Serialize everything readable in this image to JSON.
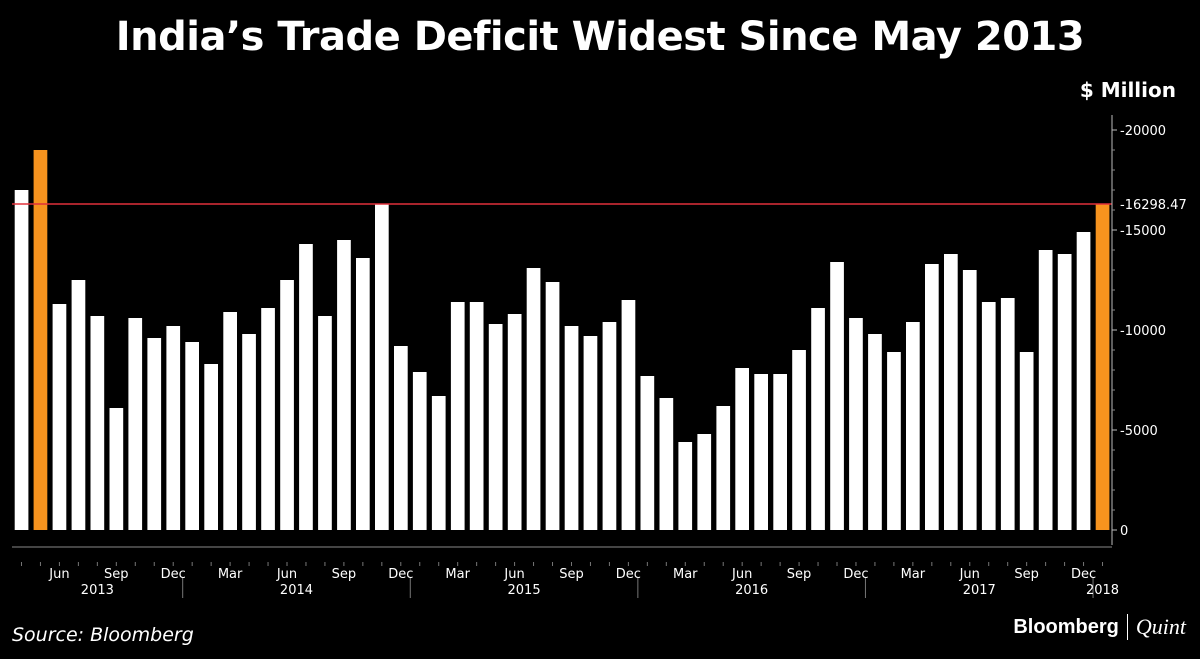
{
  "header": {
    "title": "India’s Trade Deficit Widest Since May 2013",
    "unit": "$ Million"
  },
  "footer": {
    "source": "Source: Bloomberg",
    "brand1": "Bloomberg",
    "brand2": "Quint"
  },
  "colors": {
    "bar": "#ffffff",
    "highlight": "#f7931e",
    "refline": "#e0303a",
    "background": "#000000"
  },
  "chart_data": {
    "type": "bar",
    "ylabel": "$ Million",
    "ylim": [
      0,
      20000
    ],
    "y_ticks": [
      "0",
      "-5000",
      "-10000",
      "-15000",
      "-20000"
    ],
    "y_tick_values": [
      0,
      5000,
      10000,
      15000,
      20000
    ],
    "reference_line": {
      "value": 16298.47,
      "label": "-16298.47"
    },
    "highlighted_categories": [
      "2013-05",
      "2018-01"
    ],
    "month_ticks": [
      "Jun",
      "Sep",
      "Dec",
      "Mar",
      "Jun",
      "Sep",
      "Dec",
      "Mar",
      "Jun",
      "Sep",
      "Dec",
      "Mar",
      "Jun",
      "Sep",
      "Dec",
      "Mar",
      "Jun",
      "Sep",
      "Dec"
    ],
    "year_labels": [
      "2013",
      "2014",
      "2015",
      "2016",
      "2017",
      "2018"
    ],
    "categories": [
      "2013-04",
      "2013-05",
      "2013-06",
      "2013-07",
      "2013-08",
      "2013-09",
      "2013-10",
      "2013-11",
      "2013-12",
      "2014-01",
      "2014-02",
      "2014-03",
      "2014-04",
      "2014-05",
      "2014-06",
      "2014-07",
      "2014-08",
      "2014-09",
      "2014-10",
      "2014-11",
      "2014-12",
      "2015-01",
      "2015-02",
      "2015-03",
      "2015-04",
      "2015-05",
      "2015-06",
      "2015-07",
      "2015-08",
      "2015-09",
      "2015-10",
      "2015-11",
      "2015-12",
      "2016-01",
      "2016-02",
      "2016-03",
      "2016-04",
      "2016-05",
      "2016-06",
      "2016-07",
      "2016-08",
      "2016-09",
      "2016-10",
      "2016-11",
      "2016-12",
      "2017-01",
      "2017-02",
      "2017-03",
      "2017-04",
      "2017-05",
      "2017-06",
      "2017-07",
      "2017-08",
      "2017-09",
      "2017-10",
      "2017-11",
      "2017-12",
      "2018-01"
    ],
    "values": [
      17000,
      19000,
      11300,
      12500,
      10700,
      6100,
      10600,
      9600,
      10200,
      9400,
      8300,
      10900,
      9800,
      11100,
      12500,
      14300,
      10700,
      14500,
      13600,
      16300,
      9200,
      7900,
      6700,
      11400,
      11400,
      10300,
      10800,
      13100,
      12400,
      10200,
      9700,
      10400,
      11500,
      7700,
      6600,
      4400,
      4800,
      6200,
      8100,
      7800,
      7800,
      9000,
      11100,
      13400,
      10600,
      9800,
      8900,
      10400,
      13300,
      13800,
      13000,
      11400,
      11600,
      8900,
      14000,
      13800,
      14900,
      16298.47
    ]
  }
}
